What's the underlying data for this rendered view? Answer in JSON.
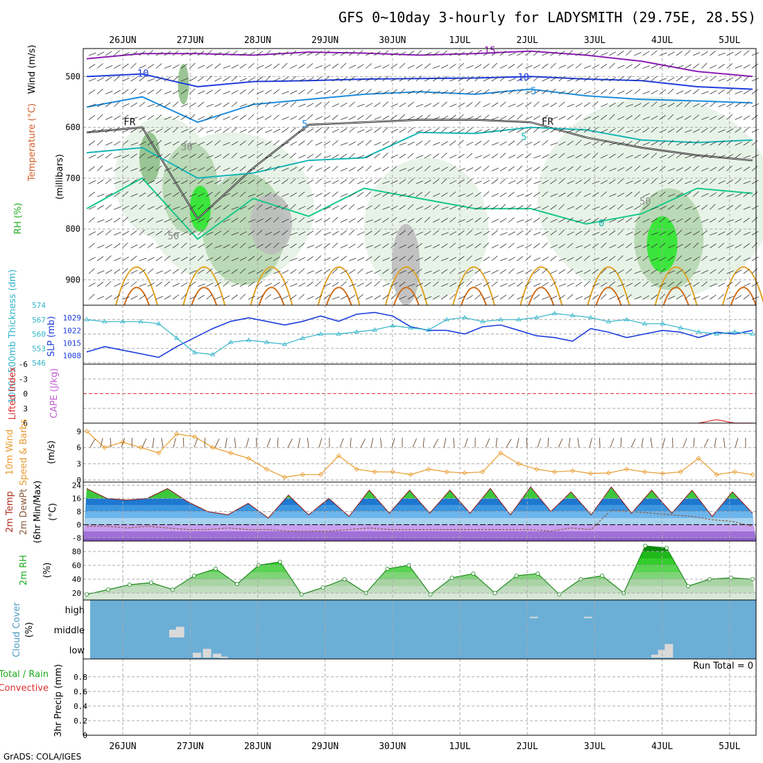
{
  "title": "GFS 0~10day 3-hourly for LADYSMITH (29.75E, 28.5S)",
  "credit": "GrADS: COLA/IGES",
  "dates": [
    "26JUN",
    "27JUN",
    "28JUN",
    "29JUN",
    "30JUN",
    "1JUL",
    "2JUL",
    "3JUL",
    "4JUL",
    "5JUL"
  ],
  "colors": {
    "rh_light": "#e6f2e6",
    "rh_mid": "#b5d6b0",
    "rh_dark": "#8fc08a",
    "rh_bright": "#2ee62e",
    "grey_shade": "#bdbdbd",
    "t_purple": "#8c1cb4",
    "t_blue": "#1e3cdc",
    "t_lightblue": "#1e8cdc",
    "t_teal": "#14b4b4",
    "t_green": "#14c888",
    "t_orange": "#e0a020",
    "t_darkorange": "#d06a14",
    "slp": "#1e3cdc",
    "thickness": "#30b4c8",
    "wind10m": "#e89b2e",
    "temp_fill": "#1e8ce0",
    "rh2m": "#3cc83c",
    "cloud_bg": "#6baed6",
    "cloud_bar": "#d9d9d9"
  },
  "chart_data": [
    {
      "panel": "upper_air",
      "type": "heatmap",
      "ylabel_parts": [
        "RH (%)",
        "Temperature (°C)",
        "Wind (m/s)"
      ],
      "ylabel_unit": "(millibars)",
      "y_ticks": [
        500,
        600,
        700,
        800,
        900
      ],
      "ylim": [
        445,
        950
      ],
      "x_range_days": [
        0,
        10
      ],
      "contour_labels": [
        "-15",
        "-10",
        "-5",
        "5",
        "5",
        "0",
        "FR",
        "FR",
        "30",
        "50",
        "50",
        "10"
      ],
      "contours": [
        {
          "label": "-15",
          "color": "purple",
          "level": [
            465,
            455,
            455,
            458,
            452,
            454,
            458,
            455,
            450,
            458,
            470,
            490,
            500
          ]
        },
        {
          "label": "-10",
          "color": "blue",
          "level": [
            500,
            495,
            520,
            510,
            508,
            505,
            504,
            503,
            500,
            505,
            508,
            520,
            525
          ]
        },
        {
          "label": "-5",
          "color": "lightblue",
          "level": [
            560,
            540,
            590,
            555,
            545,
            535,
            530,
            535,
            525,
            538,
            545,
            548,
            552
          ]
        },
        {
          "label": "FR",
          "color": "black",
          "level": [
            610,
            600,
            780,
            680,
            595,
            590,
            585,
            585,
            590,
            620,
            640,
            655,
            665
          ]
        }
      ]
    },
    {
      "panel": "slp_thickness",
      "type": "line",
      "ylabel_left": "1000~500mb Thickness (dm)",
      "ylabel_right": "SLP (mb)",
      "left_ticks": [
        546,
        553,
        560,
        567,
        574
      ],
      "right_ticks": [
        1008,
        1015,
        1022,
        1029
      ],
      "series": [
        {
          "name": "SLP",
          "axis": "right",
          "values": [
            1010,
            1013,
            1011,
            1009,
            1007,
            1013,
            1018,
            1023,
            1027,
            1029,
            1027,
            1025,
            1027,
            1030,
            1027,
            1031,
            1032,
            1030,
            1024,
            1022,
            1022,
            1020,
            1024,
            1025,
            1022,
            1019,
            1018,
            1016,
            1023,
            1021,
            1018,
            1020,
            1022,
            1021,
            1018,
            1021,
            1020,
            1022
          ]
        },
        {
          "name": "Thickness",
          "axis": "left",
          "values": [
            567,
            566,
            566,
            566,
            565,
            558,
            551,
            550,
            556,
            557,
            556,
            555,
            558,
            560,
            560,
            561,
            562,
            564,
            563,
            562,
            567,
            568,
            566,
            567,
            567,
            568,
            570,
            569,
            568,
            566,
            567,
            565,
            565,
            563,
            561,
            560,
            561,
            560
          ]
        }
      ]
    },
    {
      "panel": "cape_li",
      "type": "line",
      "ylabel_left": "Lifted Index",
      "ylabel_right": "CAPE (J/kg)",
      "y_ticks": [
        "-6",
        "-3",
        "0",
        "3",
        "6"
      ],
      "series": [
        {
          "name": "Lifted Index",
          "values": [
            8,
            8,
            8,
            8,
            8,
            8,
            8,
            8,
            8,
            8,
            8,
            8,
            8,
            8,
            8,
            8,
            8,
            8,
            8,
            8,
            8,
            8,
            8,
            8,
            8,
            8,
            8,
            8,
            8,
            8,
            8,
            8,
            8,
            8,
            8,
            5.3,
            6,
            8
          ]
        }
      ]
    },
    {
      "panel": "wind10m",
      "type": "line",
      "ylabel_left": "10m Wind",
      "ylabel_mid": "Speed & Barbs",
      "ylabel_right": "(m/s)",
      "y_ticks": [
        0,
        3,
        6,
        9
      ],
      "ylim": [
        0,
        10
      ],
      "series": [
        {
          "name": "10m Wind Speed",
          "values": [
            9,
            6,
            7,
            6,
            5,
            8.5,
            8,
            6,
            5,
            4,
            2,
            0.5,
            1,
            1,
            4.5,
            2,
            1.5,
            1.5,
            1,
            2,
            1.5,
            1.3,
            1.5,
            5,
            3,
            2,
            1.5,
            1.7,
            1.2,
            1.3,
            2,
            1.5,
            1.2,
            1.5,
            4,
            1,
            1.5,
            1
          ]
        }
      ]
    },
    {
      "panel": "temp2m",
      "type": "area",
      "ylabel_left": "2m Temp",
      "ylabel_mid": "2m DewPt",
      "ylabel_note": "(6hr Min/Max)",
      "ylabel_right": "(°C)",
      "y_ticks": [
        -8,
        0,
        8,
        16,
        24
      ],
      "ylim": [
        -10,
        26
      ],
      "series": [
        {
          "name": "2m Temp",
          "values": [
            22,
            16,
            15,
            16,
            22,
            14,
            8,
            6,
            13,
            4,
            18,
            6,
            16,
            5,
            21,
            7,
            21,
            7,
            21,
            7,
            22,
            6,
            23,
            8,
            20,
            6,
            23,
            7,
            21,
            7,
            21,
            5,
            20,
            7
          ]
        },
        {
          "name": "2m DewPt",
          "values": [
            -1,
            -1,
            -2,
            -1,
            -2,
            -3,
            -3,
            -2,
            -3,
            -3,
            -4,
            -4,
            -4,
            -3,
            -2,
            -3,
            -3,
            -3,
            -3,
            -3,
            -3,
            -3,
            -3,
            -4,
            -2,
            -3,
            9,
            8,
            7,
            6,
            5,
            3,
            2,
            -1
          ]
        }
      ]
    },
    {
      "panel": "rh2m",
      "type": "area",
      "ylabel_left": "2m RH",
      "ylabel_right": "(%)",
      "y_ticks": [
        20,
        40,
        60,
        80
      ],
      "ylim": [
        10,
        95
      ],
      "series": [
        {
          "name": "2m RH",
          "values": [
            18,
            25,
            32,
            35,
            25,
            45,
            55,
            33,
            60,
            65,
            18,
            28,
            40,
            20,
            55,
            60,
            18,
            42,
            48,
            20,
            45,
            48,
            18,
            40,
            45,
            20,
            88,
            85,
            30,
            40,
            42,
            40
          ]
        }
      ]
    },
    {
      "panel": "cloud",
      "type": "bar",
      "ylabel_left": "Cloud Cover",
      "ylabel_right": "(%)",
      "levels": [
        "high",
        "middle",
        "low"
      ],
      "bars": [
        {
          "level": "middle",
          "day": 0.75,
          "value": 40
        },
        {
          "level": "middle",
          "day": 0.85,
          "value": 55
        },
        {
          "level": "low",
          "day": 1.1,
          "value": 25
        },
        {
          "level": "low",
          "day": 1.25,
          "value": 45
        },
        {
          "level": "low",
          "day": 1.4,
          "value": 20
        },
        {
          "level": "low",
          "day": 1.5,
          "value": 5
        },
        {
          "level": "high",
          "day": 6.1,
          "value": 3
        },
        {
          "level": "high",
          "day": 6.9,
          "value": 3
        },
        {
          "level": "low",
          "day": 7.9,
          "value": 15
        },
        {
          "level": "low",
          "day": 8.0,
          "value": 40
        },
        {
          "level": "low",
          "day": 8.1,
          "value": 70
        }
      ]
    },
    {
      "panel": "precip",
      "type": "bar",
      "ylabel_left": "Total / Rain",
      "ylabel_left2": "Convective",
      "ylabel_right": "3hr Precip (mm)",
      "y_ticks": [
        "0",
        "0.2",
        "0.4",
        "0.6",
        "0.8"
      ],
      "ylim": [
        0,
        0.95
      ],
      "annotation": "Run Total = 0",
      "values": []
    }
  ]
}
